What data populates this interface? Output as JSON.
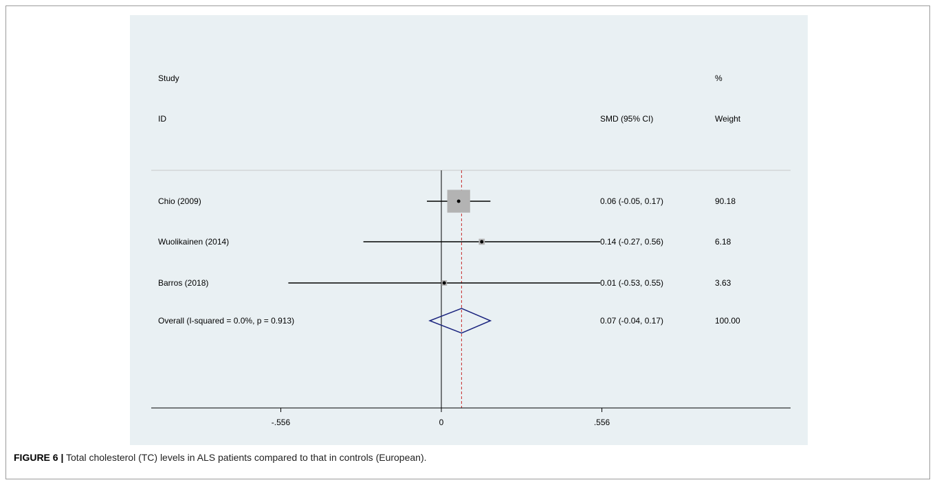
{
  "figure": {
    "label": "FIGURE 6 |",
    "caption": "Total cholesterol (TC) levels in ALS patients compared to that in controls (European)."
  },
  "chart_data": {
    "type": "forest",
    "columns": {
      "study_line1": "Study",
      "study_line2": "ID",
      "effect_header": "SMD (95% CI)",
      "weight_line1": "%",
      "weight_line2": "Weight"
    },
    "studies": [
      {
        "name": "Chio (2009)",
        "smd": 0.06,
        "lower": -0.05,
        "upper": 0.17,
        "weight": 90.18,
        "ci_text": "0.06 (-0.05, 0.17)",
        "weight_text": "90.18"
      },
      {
        "name": "Wuolikainen (2014)",
        "smd": 0.14,
        "lower": -0.27,
        "upper": 0.56,
        "weight": 6.18,
        "ci_text": "0.14 (-0.27, 0.56)",
        "weight_text": "6.18"
      },
      {
        "name": "Barros (2018)",
        "smd": 0.01,
        "lower": -0.53,
        "upper": 0.55,
        "weight": 3.63,
        "ci_text": "0.01 (-0.53, 0.55)",
        "weight_text": "3.63"
      }
    ],
    "overall": {
      "name": "Overall  (I-squared = 0.0%, p = 0.913)",
      "smd": 0.07,
      "lower": -0.04,
      "upper": 0.17,
      "weight": 100.0,
      "ci_text": "0.07 (-0.04, 0.17)",
      "weight_text": "100.00"
    },
    "x_ticks": [
      {
        "value": -0.556,
        "label": "-.556"
      },
      {
        "value": 0,
        "label": "0"
      },
      {
        "value": 0.556,
        "label": ".556"
      }
    ],
    "null_line": 0,
    "colors": {
      "background": "#e9f0f3",
      "box": "#b3b3b3",
      "diamond": "#1a237e",
      "ref_line": "#c62828"
    }
  }
}
